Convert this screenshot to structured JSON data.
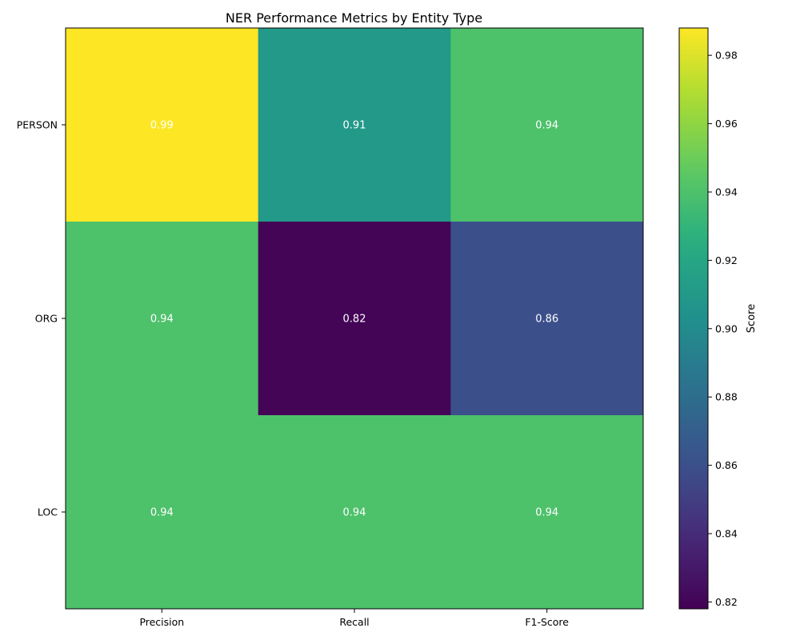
{
  "chart_data": {
    "type": "heatmap",
    "title": "NER Performance Metrics by Entity Type",
    "x_categories": [
      "Precision",
      "Recall",
      "F1-Score"
    ],
    "y_categories": [
      "PERSON",
      "ORG",
      "LOC"
    ],
    "values": [
      [
        0.99,
        0.91,
        0.94
      ],
      [
        0.94,
        0.82,
        0.86
      ],
      [
        0.94,
        0.94,
        0.94
      ]
    ],
    "cell_labels": [
      [
        "0.99",
        "0.91",
        "0.94"
      ],
      [
        "0.94",
        "0.82",
        "0.86"
      ],
      [
        "0.94",
        "0.94",
        "0.94"
      ]
    ],
    "colormap": "viridis",
    "colorbar": {
      "label": "Score",
      "range": [
        0.818,
        0.988
      ],
      "ticks": [
        0.82,
        0.84,
        0.86,
        0.88,
        0.9,
        0.92,
        0.94,
        0.96,
        0.98
      ],
      "tick_labels": [
        "0.82",
        "0.84",
        "0.86",
        "0.88",
        "0.90",
        "0.92",
        "0.94",
        "0.96",
        "0.98"
      ]
    },
    "grid": false
  }
}
